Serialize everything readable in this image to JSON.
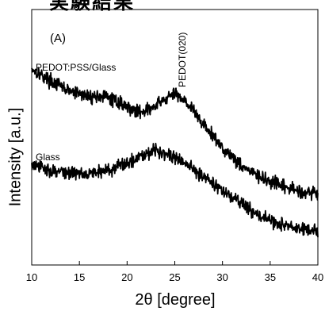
{
  "header": {
    "heading": "実験結果"
  },
  "chart_data": {
    "type": "line",
    "panel_label": "(A)",
    "xlabel": "2θ [degree]",
    "ylabel": "Intensity [a.u.]",
    "xlim": [
      10,
      40
    ],
    "ylim": [
      0,
      100
    ],
    "xticks": [
      10,
      15,
      20,
      25,
      30,
      35,
      40
    ],
    "yticks": [],
    "grid": false,
    "annotations": [
      {
        "text": "PEDOT(020)",
        "x": 25.5
      }
    ],
    "series": [
      {
        "name": "PEDOT:PSS/Glass",
        "x": [
          10,
          12,
          14,
          16,
          17.5,
          19,
          21,
          22.5,
          24,
          25,
          26,
          27,
          28,
          30,
          32,
          34,
          36,
          38,
          40
        ],
        "values": [
          77,
          72,
          68,
          66,
          66,
          64,
          60,
          61,
          65,
          67,
          65,
          60,
          55,
          46,
          39,
          34,
          31,
          29,
          28
        ]
      },
      {
        "name": "Glass",
        "x": [
          10,
          12,
          14,
          16,
          18,
          20,
          22,
          23,
          24,
          25,
          26,
          28,
          30,
          32,
          34,
          36,
          38,
          40
        ],
        "values": [
          39,
          37,
          36,
          36,
          37,
          40,
          44,
          45,
          44,
          42,
          40,
          35,
          29,
          24,
          19,
          16,
          14,
          13
        ]
      }
    ]
  }
}
